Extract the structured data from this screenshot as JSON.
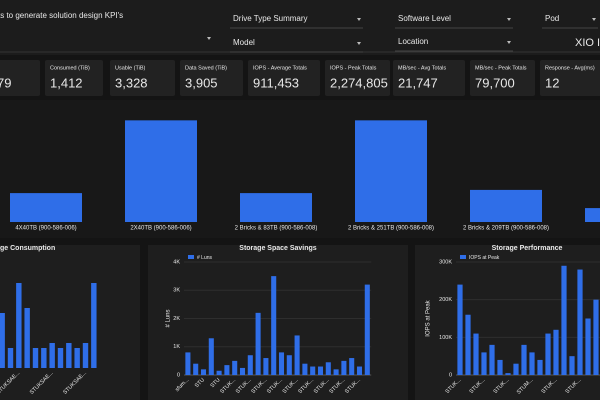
{
  "header": {
    "title": "ts to generate solution design KPI's",
    "filters": [
      "Drive Type Summary",
      "Model",
      "Software Level",
      "Location",
      "Pod"
    ],
    "selection": "XIO I"
  },
  "kpis": [
    {
      "value": "79",
      "color": "#ffffff"
    },
    {
      "label": "Consumed (TiB)",
      "value": "1,412",
      "color": "#f2a33a"
    },
    {
      "label": "Usable (TiB)",
      "value": "3,328",
      "color": "#ffffff"
    },
    {
      "label": "Data Saved (TiB)",
      "value": "3,905",
      "color": "#ffffff"
    },
    {
      "label": "IOPS - Average Totals",
      "value": "911,453",
      "color": "#ffffff"
    },
    {
      "label": "IOPS - Peak Totals",
      "value": "2,274,805",
      "color": "#5cc07a"
    },
    {
      "label": "MB/sec - Avg Totals",
      "value": "21,747",
      "color": "#ffffff"
    },
    {
      "label": "MB/sec - Peak Totals",
      "value": "79,700",
      "color": "#5cc07a"
    },
    {
      "label": "Response - Avg(ms)",
      "value": "12",
      "color": "#ffffff"
    }
  ],
  "chart_data": [
    {
      "type": "bar",
      "color": "#2f6ee8",
      "ylim": [
        0,
        100
      ],
      "categories": [
        "4X40TB (900-586-006)",
        "2X40TB (900-586-006)",
        "2 Bricks & 83TB (900-586-008)",
        "2 Bricks & 251TB (900-586-008)",
        "2 Bricks & 209TB (900-586-008)",
        "1X10"
      ],
      "values": [
        27,
        95,
        27,
        95,
        30,
        13
      ]
    },
    {
      "type": "bar",
      "title": "ge Consumption",
      "color": "#2f6ee8",
      "ylim": [
        0,
        100
      ],
      "categories": [
        null,
        null,
        "STUKSAE...",
        null,
        null,
        null,
        "STUKSAE...",
        null,
        null,
        null,
        "STUKSAE...",
        null
      ],
      "values": [
        55,
        20,
        85,
        60,
        20,
        20,
        25,
        20,
        25,
        20,
        25,
        85
      ]
    },
    {
      "type": "bar",
      "title": "Storage Space Savings",
      "color": "#2f6ee8",
      "y_label": "# Luns",
      "legend": "# Luns",
      "ylim": [
        0,
        4000
      ],
      "yticks": [
        0,
        {
          "value": 1000,
          "label": "1K"
        },
        {
          "value": 2000,
          "label": "2K"
        },
        {
          "value": 3000,
          "label": "3K"
        },
        {
          "value": 4000,
          "label": "4K"
        }
      ],
      "categories": [
        "sfum...",
        null,
        "STU",
        null,
        "STU",
        null,
        "STUK...",
        null,
        "STUK...",
        null,
        "STUK...",
        null,
        "STUK...",
        null,
        "STUK...",
        null,
        "STUK...",
        null,
        "STUK...",
        null,
        "STUK...",
        null,
        "STUK...",
        null
      ],
      "values": [
        800,
        400,
        200,
        1300,
        150,
        350,
        500,
        250,
        700,
        2200,
        600,
        3500,
        800,
        700,
        1400,
        400,
        300,
        300,
        450,
        200,
        500,
        600,
        300,
        3200
      ]
    },
    {
      "type": "bar",
      "title": "Storage Performance",
      "color": "#2f6ee8",
      "y_label": "IOPS at Peak",
      "legend": "IOPS at Peak",
      "ylim": [
        0,
        300000
      ],
      "yticks": [
        0,
        {
          "value": 100000,
          "label": "100K"
        },
        {
          "value": 200000,
          "label": "200K"
        },
        {
          "value": 300000,
          "label": "300K"
        }
      ],
      "categories": [
        "STUK...",
        null,
        null,
        "STUK...",
        null,
        null,
        "STUK...",
        null,
        null,
        "STUM...",
        null,
        null,
        "STUK...",
        null,
        null,
        "STUK...",
        null,
        null
      ],
      "values": [
        240000,
        160000,
        110000,
        60000,
        80000,
        40000,
        5000,
        30000,
        80000,
        60000,
        40000,
        110000,
        120000,
        290000,
        50000,
        280000,
        150000,
        200000
      ]
    }
  ]
}
